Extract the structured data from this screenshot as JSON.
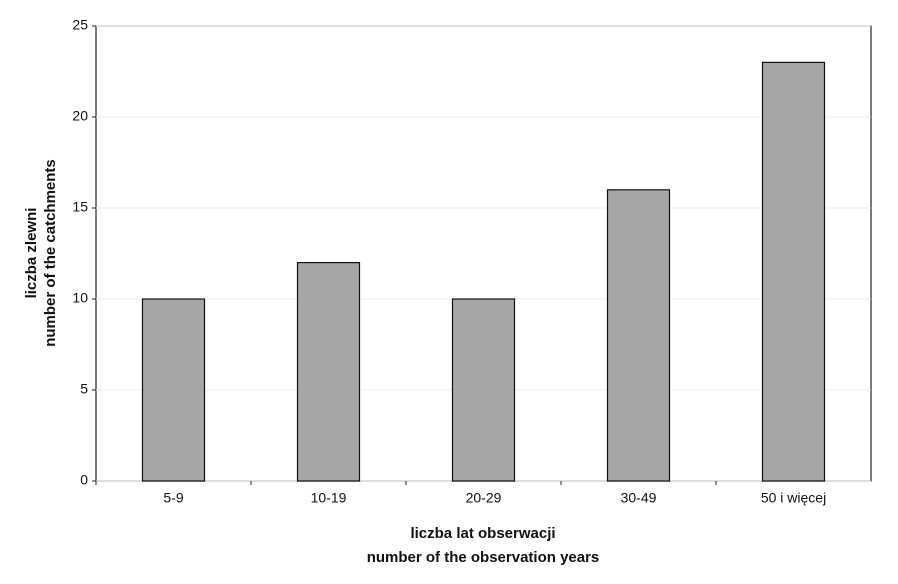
{
  "chart_data": {
    "type": "bar",
    "categories": [
      "5-9",
      "10-19",
      "20-29",
      "30-49",
      "50 i więcej"
    ],
    "values": [
      10,
      12,
      10,
      16,
      23
    ],
    "color": "#a6a6a6",
    "ylim": [
      0,
      25
    ],
    "yticks": [
      0,
      5,
      10,
      15,
      20,
      25
    ],
    "grid": true,
    "ylabel": [
      "liczba zlewni",
      "number of the catchments"
    ],
    "xlabel": [
      "liczba lat obserwacji",
      "number of the observation years"
    ]
  }
}
